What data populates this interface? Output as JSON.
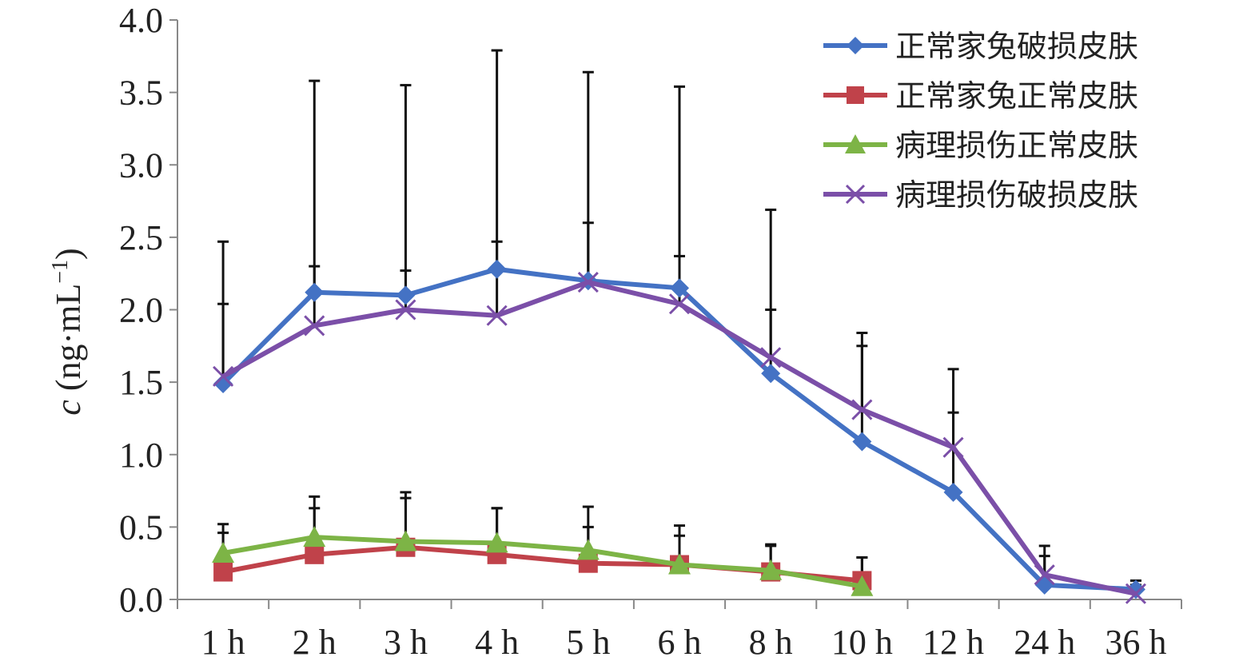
{
  "chart_data": {
    "type": "line",
    "ylabel": {
      "symbol": "c",
      "unit_prefix": " (ng·mL",
      "unit_exp": "−1",
      "unit_suffix": ")"
    },
    "xlabel": "",
    "title": "",
    "ylim": [
      0,
      4
    ],
    "yticks": [
      "0.0",
      "0.5",
      "1.0",
      "1.5",
      "2.0",
      "2.5",
      "3.0",
      "3.5",
      "4.0"
    ],
    "categories": [
      "1 h",
      "2 h",
      "3 h",
      "4 h",
      "5 h",
      "6 h",
      "8 h",
      "10 h",
      "12 h",
      "24 h",
      "36 h"
    ],
    "legend_position": "top-right",
    "series": [
      {
        "name": "正常家兔破损皮肤",
        "color": "#4472C4",
        "marker": "diamond",
        "values": [
          1.49,
          2.12,
          2.1,
          2.28,
          2.2,
          2.15,
          1.56,
          1.09,
          0.74,
          0.1,
          0.07
        ],
        "err_upper": [
          2.04,
          2.3,
          2.27,
          2.47,
          2.6,
          2.37,
          2.0,
          1.75,
          1.29,
          0.37,
          0.13
        ]
      },
      {
        "name": "正常家兔正常皮肤",
        "color": "#C0424A",
        "marker": "square",
        "values": [
          0.19,
          0.31,
          0.36,
          0.31,
          0.25,
          0.24,
          0.19,
          0.13,
          null,
          null,
          null
        ],
        "err_upper": [
          0.46,
          0.63,
          0.7,
          0.63,
          0.5,
          0.44,
          0.37,
          0.29,
          null,
          null,
          null
        ]
      },
      {
        "name": "病理损伤正常皮肤",
        "color": "#7DB446",
        "marker": "triangle",
        "values": [
          0.32,
          0.43,
          0.4,
          0.39,
          0.34,
          0.24,
          0.2,
          0.09,
          null,
          null,
          null
        ],
        "err_upper": [
          0.52,
          0.71,
          0.74,
          0.63,
          0.64,
          0.51,
          0.38,
          0.29,
          null,
          null,
          null
        ]
      },
      {
        "name": "病理损伤破损皮肤",
        "color": "#7B4FA8",
        "marker": "x",
        "values": [
          1.54,
          1.89,
          2.0,
          1.96,
          2.19,
          2.04,
          1.67,
          1.31,
          1.05,
          0.17,
          0.04
        ],
        "err_upper": [
          2.47,
          3.58,
          3.55,
          3.79,
          3.64,
          3.54,
          2.69,
          1.84,
          1.59,
          0.3,
          0.1
        ]
      }
    ]
  }
}
